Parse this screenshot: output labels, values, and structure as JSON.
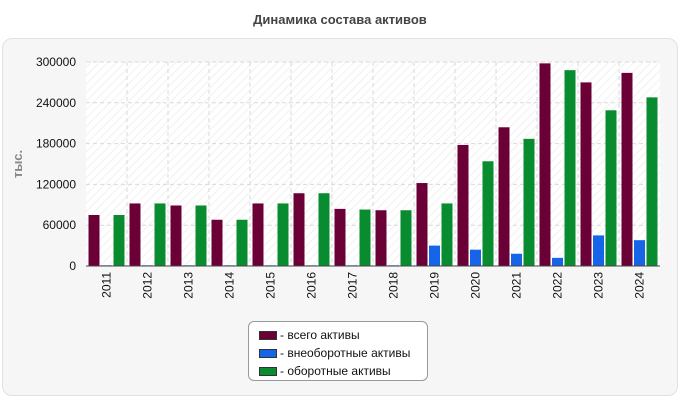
{
  "page": {
    "title": "Динамика состава активов"
  },
  "chart_data": {
    "type": "bar",
    "title": "Динамика состава активов",
    "xlabel": "",
    "ylabel": "тыс.",
    "ylim": [
      0,
      300000
    ],
    "yticks": [
      0,
      60000,
      120000,
      180000,
      240000,
      300000
    ],
    "grid": true,
    "legend_position": "bottom",
    "categories": [
      "2011",
      "2012",
      "2013",
      "2014",
      "2015",
      "2016",
      "2017",
      "2018",
      "2019",
      "2020",
      "2021",
      "2022",
      "2023",
      "2024"
    ],
    "series": [
      {
        "name": "- всего активы",
        "color": "#6b0037",
        "values": [
          75000,
          92000,
          89000,
          68000,
          92000,
          107000,
          84000,
          82000,
          122000,
          178000,
          204000,
          298000,
          270000,
          284000
        ]
      },
      {
        "name": "- внеоборотные активы",
        "color": "#1665e8",
        "values": [
          1000,
          1000,
          1000,
          1000,
          1000,
          1000,
          1000,
          1000,
          30000,
          24000,
          18000,
          12000,
          45000,
          38000
        ]
      },
      {
        "name": "- оборотные активы",
        "color": "#098b2f",
        "values": [
          75000,
          92000,
          89000,
          68000,
          92000,
          107000,
          83000,
          82000,
          92000,
          154000,
          187000,
          288000,
          229000,
          248000
        ]
      }
    ]
  }
}
